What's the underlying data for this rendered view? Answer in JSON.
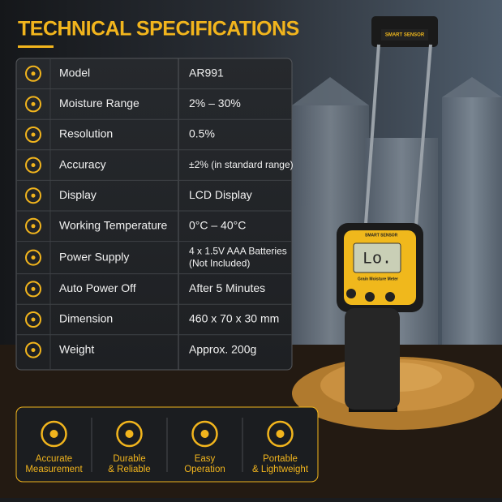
{
  "header": {
    "title": "TECHNICAL SPECIFICATIONS"
  },
  "table": {
    "rows": [
      {
        "label": "Model",
        "value": [
          "AR991"
        ]
      },
      {
        "label": "Moisture Range",
        "value": [
          "2% – 30%"
        ]
      },
      {
        "label": "Resolution",
        "value": [
          "0.5%"
        ]
      },
      {
        "label": "Accuracy",
        "value": [
          "±2% (in standard range)"
        ]
      },
      {
        "label": "Display",
        "value": [
          "LCD Display"
        ]
      },
      {
        "label": "Working Temperature",
        "value": [
          "0°C – 40°C"
        ]
      },
      {
        "label": "Power Supply",
        "value": [
          "4 x 1.5V AAA Batteries",
          "(Not Included)"
        ]
      },
      {
        "label": "Auto Power Off",
        "value": [
          "After 5 Minutes"
        ]
      },
      {
        "label": "Dimension",
        "value": [
          "460 x 70 x 30 mm"
        ]
      },
      {
        "label": "Weight",
        "value": [
          "Approx. 200g"
        ]
      }
    ]
  },
  "features": [
    {
      "lines": [
        "Accurate",
        "Measurement"
      ]
    },
    {
      "lines": [
        "Durable",
        "& Reliable"
      ]
    },
    {
      "lines": [
        "Easy",
        "Operation"
      ]
    },
    {
      "lines": [
        "Portable",
        "& Lightweight"
      ]
    }
  ],
  "device": {
    "brand": "SMART SENSOR",
    "name": "Grain Moisture Meter",
    "screen": "Lo."
  }
}
